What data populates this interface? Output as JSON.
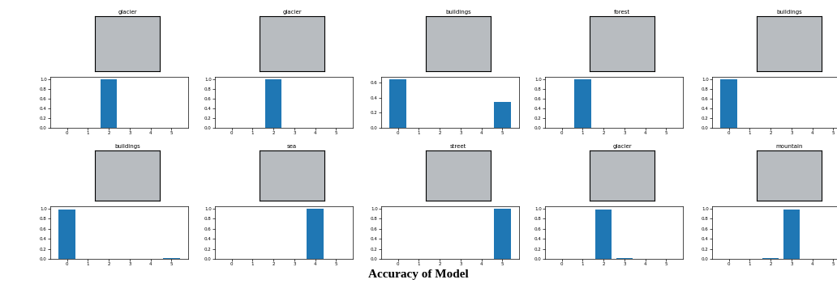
{
  "caption": "Accuracy of Model",
  "chart_data": [
    {
      "type": "bar",
      "title": "glacier",
      "categories": [
        "0",
        "1",
        "2",
        "3",
        "4",
        "5"
      ],
      "values": [
        0,
        0,
        1.0,
        0,
        0,
        0
      ],
      "color": "#1f77b4",
      "ylim": [
        0,
        1.05
      ],
      "yticks": [
        {
          "value": 0,
          "label": "0.0"
        },
        {
          "value": 0.2,
          "label": "0.2"
        },
        {
          "value": 0.4,
          "label": "0.4"
        },
        {
          "value": 0.6,
          "label": "0.6"
        },
        {
          "value": 0.8,
          "label": "0.8"
        },
        {
          "value": 1.0,
          "label": "1.0"
        }
      ]
    },
    {
      "type": "bar",
      "title": "glacier",
      "categories": [
        "0",
        "1",
        "2",
        "3",
        "4",
        "5"
      ],
      "values": [
        0,
        0,
        1.0,
        0,
        0,
        0
      ],
      "color": "#1f77b4",
      "ylim": [
        0,
        1.05
      ],
      "yticks": [
        {
          "value": 0,
          "label": "0.0"
        },
        {
          "value": 0.2,
          "label": "0.2"
        },
        {
          "value": 0.4,
          "label": "0.4"
        },
        {
          "value": 0.6,
          "label": "0.6"
        },
        {
          "value": 0.8,
          "label": "0.8"
        },
        {
          "value": 1.0,
          "label": "1.0"
        }
      ]
    },
    {
      "type": "bar",
      "title": "buildings",
      "categories": [
        "0",
        "1",
        "2",
        "3",
        "4",
        "5"
      ],
      "values": [
        0.65,
        0,
        0,
        0,
        0,
        0.35
      ],
      "color": "#1f77b4",
      "ylim": [
        0,
        0.68
      ],
      "yticks": [
        {
          "value": 0,
          "label": "0.0"
        },
        {
          "value": 0.2,
          "label": "0.2"
        },
        {
          "value": 0.4,
          "label": "0.4"
        },
        {
          "value": 0.6,
          "label": "0.6"
        }
      ]
    },
    {
      "type": "bar",
      "title": "forest",
      "categories": [
        "0",
        "1",
        "2",
        "3",
        "4",
        "5"
      ],
      "values": [
        0,
        1.0,
        0,
        0,
        0,
        0
      ],
      "color": "#1f77b4",
      "ylim": [
        0,
        1.05
      ],
      "yticks": [
        {
          "value": 0,
          "label": "0.0"
        },
        {
          "value": 0.2,
          "label": "0.2"
        },
        {
          "value": 0.4,
          "label": "0.4"
        },
        {
          "value": 0.6,
          "label": "0.6"
        },
        {
          "value": 0.8,
          "label": "0.8"
        },
        {
          "value": 1.0,
          "label": "1.0"
        }
      ]
    },
    {
      "type": "bar",
      "title": "buildings",
      "categories": [
        "0",
        "1",
        "2",
        "3",
        "4",
        "5"
      ],
      "values": [
        1.0,
        0,
        0,
        0,
        0,
        0
      ],
      "color": "#1f77b4",
      "ylim": [
        0,
        1.05
      ],
      "yticks": [
        {
          "value": 0,
          "label": "0.0"
        },
        {
          "value": 0.2,
          "label": "0.2"
        },
        {
          "value": 0.4,
          "label": "0.4"
        },
        {
          "value": 0.6,
          "label": "0.6"
        },
        {
          "value": 0.8,
          "label": "0.8"
        },
        {
          "value": 1.0,
          "label": "1.0"
        }
      ]
    },
    {
      "type": "bar",
      "title": "buildings",
      "categories": [
        "0",
        "1",
        "2",
        "3",
        "4",
        "5"
      ],
      "values": [
        0.99,
        0,
        0,
        0,
        0,
        0.01
      ],
      "color": "#1f77b4",
      "ylim": [
        0,
        1.05
      ],
      "yticks": [
        {
          "value": 0,
          "label": "0.0"
        },
        {
          "value": 0.2,
          "label": "0.2"
        },
        {
          "value": 0.4,
          "label": "0.4"
        },
        {
          "value": 0.6,
          "label": "0.6"
        },
        {
          "value": 0.8,
          "label": "0.8"
        },
        {
          "value": 1.0,
          "label": "1.0"
        }
      ]
    },
    {
      "type": "bar",
      "title": "sea",
      "categories": [
        "0",
        "1",
        "2",
        "3",
        "4",
        "5"
      ],
      "values": [
        0,
        0,
        0,
        0,
        1.0,
        0
      ],
      "color": "#1f77b4",
      "ylim": [
        0,
        1.05
      ],
      "yticks": [
        {
          "value": 0,
          "label": "0.0"
        },
        {
          "value": 0.2,
          "label": "0.2"
        },
        {
          "value": 0.4,
          "label": "0.4"
        },
        {
          "value": 0.6,
          "label": "0.6"
        },
        {
          "value": 0.8,
          "label": "0.8"
        },
        {
          "value": 1.0,
          "label": "1.0"
        }
      ]
    },
    {
      "type": "bar",
      "title": "street",
      "categories": [
        "0",
        "1",
        "2",
        "3",
        "4",
        "5"
      ],
      "values": [
        0,
        0,
        0,
        0,
        0,
        1.0
      ],
      "color": "#1f77b4",
      "ylim": [
        0,
        1.05
      ],
      "yticks": [
        {
          "value": 0,
          "label": "0.0"
        },
        {
          "value": 0.2,
          "label": "0.2"
        },
        {
          "value": 0.4,
          "label": "0.4"
        },
        {
          "value": 0.6,
          "label": "0.6"
        },
        {
          "value": 0.8,
          "label": "0.8"
        },
        {
          "value": 1.0,
          "label": "1.0"
        }
      ]
    },
    {
      "type": "bar",
      "title": "glacier",
      "categories": [
        "0",
        "1",
        "2",
        "3",
        "4",
        "5"
      ],
      "values": [
        0,
        0,
        0.99,
        0.01,
        0,
        0
      ],
      "color": "#1f77b4",
      "ylim": [
        0,
        1.05
      ],
      "yticks": [
        {
          "value": 0,
          "label": "0.0"
        },
        {
          "value": 0.2,
          "label": "0.2"
        },
        {
          "value": 0.4,
          "label": "0.4"
        },
        {
          "value": 0.6,
          "label": "0.6"
        },
        {
          "value": 0.8,
          "label": "0.8"
        },
        {
          "value": 1.0,
          "label": "1.0"
        }
      ]
    },
    {
      "type": "bar",
      "title": "mountain",
      "categories": [
        "0",
        "1",
        "2",
        "3",
        "4",
        "5"
      ],
      "values": [
        0,
        0,
        0.01,
        0.99,
        0,
        0
      ],
      "color": "#1f77b4",
      "ylim": [
        0,
        1.05
      ],
      "yticks": [
        {
          "value": 0,
          "label": "0.0"
        },
        {
          "value": 0.2,
          "label": "0.2"
        },
        {
          "value": 0.4,
          "label": "0.4"
        },
        {
          "value": 0.6,
          "label": "0.6"
        },
        {
          "value": 0.8,
          "label": "0.8"
        },
        {
          "value": 1.0,
          "label": "1.0"
        }
      ]
    }
  ]
}
